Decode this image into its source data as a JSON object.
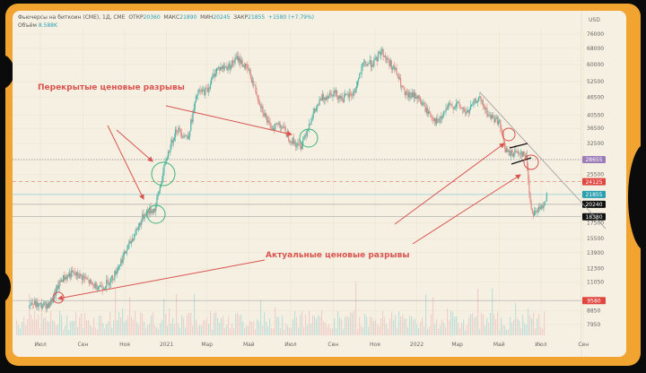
{
  "header": {
    "instrument": "Фьючерсы на биткоин (CME), 1Д, CME",
    "open_label": "ОТКР",
    "open": "20360",
    "high_label": "МАКС",
    "high": "21890",
    "low_label": "МИН",
    "low": "20245",
    "close_label": "ЗАКР",
    "close": "21855",
    "change": "+1580 (+7.79%)",
    "volume_label": "Объём",
    "volume": "8.588K"
  },
  "chart_data": {
    "type": "candlestick",
    "currency": "USD",
    "yscale": "log",
    "ylim": [
      7500,
      80000
    ],
    "y_ticks": [
      "76000",
      "68000",
      "60000",
      "52500",
      "46500",
      "40500",
      "36500",
      "32500",
      "25500",
      "17500",
      "15500",
      "13900",
      "12300",
      "11050",
      "8850",
      "7950"
    ],
    "x_ticks": [
      "Июл",
      "Сен",
      "Ноя",
      "2021",
      "Мар",
      "Май",
      "Июл",
      "Сен",
      "Ноя",
      "2022",
      "Мар",
      "Май",
      "Июл",
      "Сен"
    ],
    "x_tick_dates": [
      "2020-07-01",
      "2020-09-01",
      "2020-11-01",
      "2021-01-01",
      "2021-03-01",
      "2021-05-01",
      "2021-07-01",
      "2021-09-01",
      "2021-11-01",
      "2022-01-01",
      "2022-03-01",
      "2022-05-01",
      "2022-07-01",
      "2022-09-01"
    ],
    "price_points": [
      [
        "2020-06-15",
        9400
      ],
      [
        "2020-07-01",
        9200
      ],
      [
        "2020-07-15",
        9300
      ],
      [
        "2020-08-01",
        11300
      ],
      [
        "2020-08-15",
        11800
      ],
      [
        "2020-09-01",
        11500
      ],
      [
        "2020-09-15",
        10800
      ],
      [
        "2020-10-01",
        10700
      ],
      [
        "2020-10-15",
        11500
      ],
      [
        "2020-11-01",
        13800
      ],
      [
        "2020-11-15",
        16000
      ],
      [
        "2020-12-01",
        19000
      ],
      [
        "2020-12-15",
        19500
      ],
      [
        "2021-01-01",
        29000
      ],
      [
        "2021-01-15",
        36500
      ],
      [
        "2021-02-01",
        34000
      ],
      [
        "2021-02-15",
        48000
      ],
      [
        "2021-03-01",
        49000
      ],
      [
        "2021-03-15",
        58000
      ],
      [
        "2021-04-01",
        59000
      ],
      [
        "2021-04-15",
        63000
      ],
      [
        "2021-05-01",
        57000
      ],
      [
        "2021-05-15",
        46000
      ],
      [
        "2021-06-01",
        36500
      ],
      [
        "2021-06-15",
        38000
      ],
      [
        "2021-07-01",
        33500
      ],
      [
        "2021-07-15",
        31500
      ],
      [
        "2021-08-01",
        40000
      ],
      [
        "2021-08-15",
        46000
      ],
      [
        "2021-09-01",
        48500
      ],
      [
        "2021-09-15",
        46000
      ],
      [
        "2021-10-01",
        48000
      ],
      [
        "2021-10-15",
        60000
      ],
      [
        "2021-11-01",
        61000
      ],
      [
        "2021-11-10",
        67000
      ],
      [
        "2021-11-15",
        64000
      ],
      [
        "2021-12-01",
        57000
      ],
      [
        "2021-12-15",
        47000
      ],
      [
        "2022-01-01",
        47000
      ],
      [
        "2022-01-15",
        42000
      ],
      [
        "2022-02-01",
        38000
      ],
      [
        "2022-02-15",
        43000
      ],
      [
        "2022-03-01",
        44000
      ],
      [
        "2022-03-15",
        41000
      ],
      [
        "2022-04-01",
        46500
      ],
      [
        "2022-04-15",
        40500
      ],
      [
        "2022-05-01",
        38500
      ],
      [
        "2022-05-10",
        31000
      ],
      [
        "2022-05-15",
        30000
      ],
      [
        "2022-06-01",
        30500
      ],
      [
        "2022-06-10",
        29000
      ],
      [
        "2022-06-15",
        21000
      ],
      [
        "2022-06-18",
        19000
      ],
      [
        "2022-07-01",
        19500
      ],
      [
        "2022-07-10",
        21855
      ]
    ],
    "levels": [
      {
        "value": 28655,
        "label": "28655",
        "style": "dotted",
        "badge_color": "#9b7bb8"
      },
      {
        "value": 24125,
        "label": "24125",
        "style": "dashed",
        "badge_color": "#e0453f"
      },
      {
        "value": 21855,
        "label": "21855",
        "style": "solid",
        "badge_color": "#2a9fb0"
      },
      {
        "value": 20240,
        "label": "20240",
        "style": "solid",
        "badge_color": "#111111"
      },
      {
        "value": 18380,
        "label": "18380",
        "style": "solid",
        "badge_color": "#111111"
      },
      {
        "value": 9580,
        "label": "9580",
        "style": "solid",
        "badge_color": "#e0453f"
      }
    ],
    "annotations": {
      "covered_gaps": "Перекрытые ценовые разрывы",
      "open_gaps": "Актуальные ценовые разрывы"
    },
    "colors": {
      "up": "#4fb3a6",
      "down": "#e08a84",
      "annotation": "#d9534f",
      "gap_circle": "#3bb37a",
      "frame": "#f2a431",
      "background": "#f6f0e2"
    }
  }
}
